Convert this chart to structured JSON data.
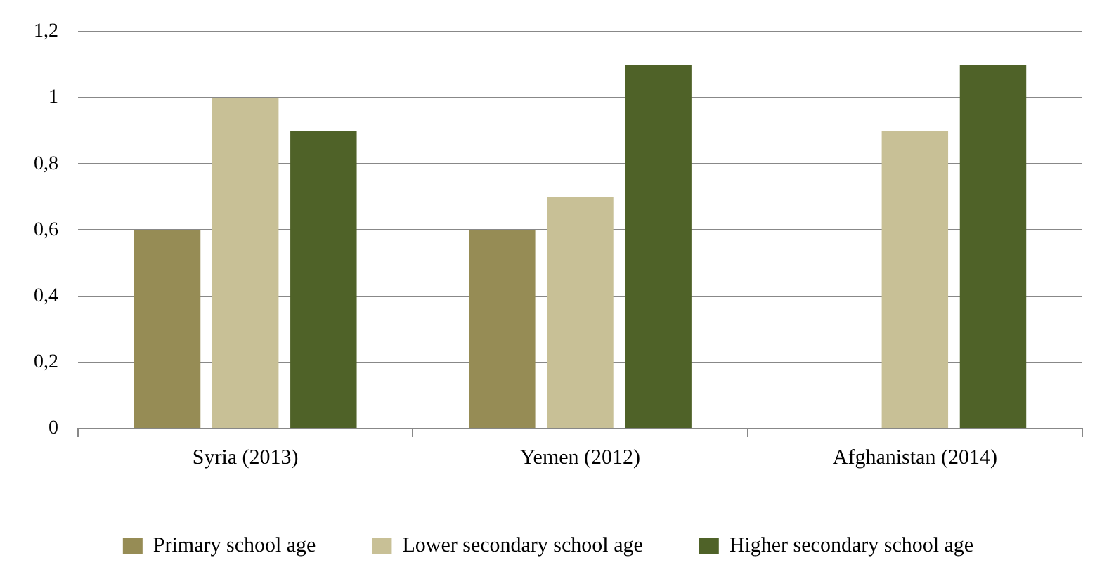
{
  "chart_data": {
    "type": "bar",
    "categories": [
      "Syria (2013)",
      "Yemen (2012)",
      "Afghanistan (2014)"
    ],
    "series": [
      {
        "name": "Primary school age",
        "color": "#968c55",
        "values": [
          0.6,
          0.6,
          null
        ]
      },
      {
        "name": "Lower secondary school age",
        "color": "#c8c096",
        "values": [
          1.0,
          0.7,
          0.9
        ]
      },
      {
        "name": "Higher secondary school age",
        "color": "#4f6228",
        "values": [
          0.9,
          1.1,
          1.1
        ]
      }
    ],
    "ylim": [
      0,
      1.2
    ],
    "yticks": [
      0,
      {
        "value": 0.2,
        "label": "0,2"
      },
      {
        "value": 0.4,
        "label": "0,4"
      },
      {
        "value": 0.6,
        "label": "0,6"
      },
      {
        "value": 0.8,
        "label": "0,8"
      },
      1,
      {
        "value": 1.2,
        "label": "1,2"
      }
    ],
    "grid": "y",
    "legend": "bottom"
  }
}
